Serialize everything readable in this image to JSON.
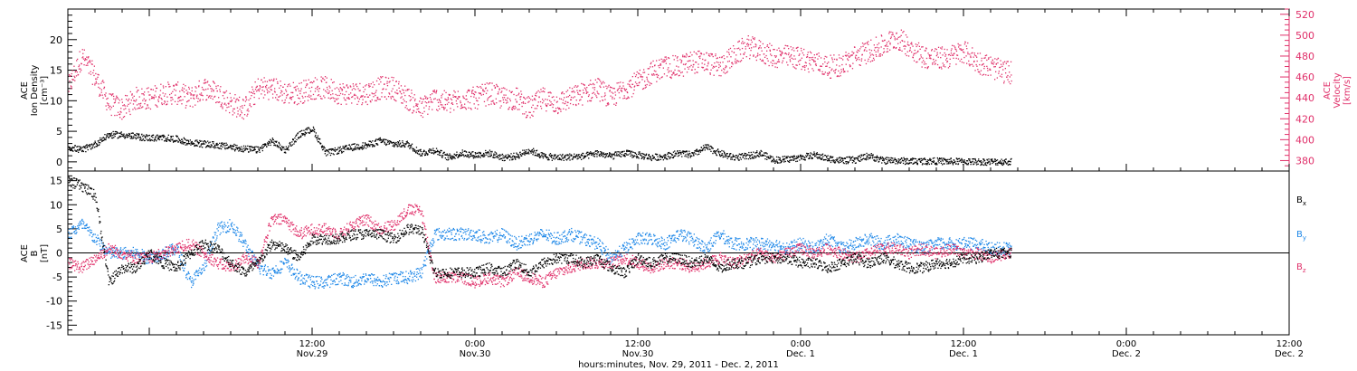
{
  "colors": {
    "black": "#000000",
    "pink": "#e0306a",
    "blue": "#1f88e8"
  },
  "chart_data": [
    {
      "type": "scatter",
      "panel": "top",
      "xlabel": "hours:minutes, Nov. 29, 2011 - Dec. 2, 2011",
      "x_ticks": [
        {
          "time": "12:00",
          "date": "Nov.29"
        },
        {
          "time": "0:00",
          "date": "Nov.30"
        },
        {
          "time": "12:00",
          "date": "Nov.30"
        },
        {
          "time": "0:00",
          "date": "Dec. 1"
        },
        {
          "time": "12:00",
          "date": "Dec. 1"
        },
        {
          "time": "0:00",
          "date": "Dec. 2"
        },
        {
          "time": "12:00",
          "date": "Dec. 2"
        }
      ],
      "xlim_hours": [
        -6.0,
        84.0
      ],
      "data_end_hours": 63.5,
      "left_axis": {
        "label": [
          "ACE",
          "Ion Density",
          "[cm⁻³]"
        ],
        "ylim": [
          -1.5,
          25
        ],
        "ticks": [
          0,
          5,
          10,
          15,
          20
        ]
      },
      "right_axis": {
        "label": [
          "ACE",
          "Velocity",
          "[km/s]"
        ],
        "ylim": [
          370,
          525
        ],
        "ticks": [
          380,
          400,
          420,
          440,
          460,
          480,
          500,
          520
        ]
      },
      "series": [
        {
          "axis": "left",
          "color": "black",
          "x_hours": [
            -6,
            -5,
            -4,
            -3,
            -2,
            -1,
            0,
            1,
            2,
            3,
            4,
            5,
            6,
            7,
            8,
            9,
            10,
            11,
            12,
            13,
            14,
            15,
            16,
            17,
            18,
            19,
            20,
            21,
            22,
            23,
            24,
            25,
            26,
            27,
            28,
            29,
            30,
            31,
            32,
            33,
            34,
            35,
            36,
            37,
            38,
            39,
            40,
            41,
            42,
            43,
            44,
            45,
            46,
            47,
            48,
            49,
            50,
            51,
            52,
            53,
            54,
            55,
            56,
            57,
            58,
            59,
            60,
            61,
            62,
            63
          ],
          "values": [
            2.5,
            2.0,
            3.0,
            4.5,
            4.5,
            4.2,
            4.0,
            4.0,
            3.8,
            3.2,
            3.0,
            2.8,
            2.5,
            2.2,
            2.0,
            3.5,
            2.0,
            4.5,
            5.5,
            1.5,
            2.0,
            2.5,
            2.8,
            3.5,
            3.0,
            3.0,
            1.5,
            2.0,
            0.8,
            1.5,
            1.2,
            1.5,
            0.8,
            1.0,
            2.0,
            1.0,
            0.8,
            0.9,
            1.0,
            1.5,
            1.0,
            1.5,
            1.2,
            0.8,
            1.0,
            1.5,
            1.2,
            2.5,
            1.5,
            0.8,
            1.0,
            1.5,
            0.4,
            0.5,
            0.8,
            1.2,
            0.6,
            0.3,
            0.4,
            1.1,
            0.3,
            0.3,
            0.2,
            0.2,
            0.2,
            0.15,
            0.15,
            0.1,
            0.1,
            0.1
          ]
        },
        {
          "axis": "right",
          "color": "pink",
          "x_hours": [
            -6,
            -5,
            -4,
            -3,
            -2,
            -1,
            0,
            1,
            2,
            3,
            4,
            5,
            6,
            7,
            8,
            9,
            10,
            11,
            12,
            13,
            14,
            15,
            16,
            17,
            18,
            19,
            20,
            21,
            22,
            23,
            24,
            25,
            26,
            27,
            28,
            29,
            30,
            31,
            32,
            33,
            34,
            35,
            36,
            37,
            38,
            39,
            40,
            41,
            42,
            43,
            44,
            45,
            46,
            47,
            48,
            49,
            50,
            51,
            52,
            53,
            54,
            55,
            56,
            57,
            58,
            59,
            60,
            61,
            62,
            63
          ],
          "values": [
            450,
            480,
            460,
            435,
            430,
            440,
            440,
            445,
            445,
            440,
            450,
            445,
            435,
            430,
            450,
            450,
            445,
            445,
            450,
            450,
            445,
            445,
            445,
            450,
            450,
            440,
            430,
            440,
            435,
            440,
            440,
            445,
            440,
            440,
            430,
            440,
            435,
            440,
            445,
            450,
            440,
            450,
            455,
            465,
            470,
            470,
            475,
            475,
            470,
            480,
            490,
            485,
            480,
            480,
            478,
            475,
            470,
            472,
            480,
            485,
            490,
            498,
            490,
            480,
            478,
            480,
            485,
            475,
            470,
            465
          ]
        }
      ]
    },
    {
      "type": "scatter",
      "panel": "bottom",
      "xlim_hours": [
        -6.0,
        84.0
      ],
      "data_end_hours": 63.5,
      "left_axis": {
        "label": [
          "ACE",
          "B",
          "[nT]"
        ],
        "ylim": [
          -17,
          17
        ],
        "ticks": [
          -15,
          -10,
          -5,
          0,
          5,
          10,
          15
        ]
      },
      "series": [
        {
          "name": "Bx",
          "label_main": "B",
          "label_sub": "x",
          "color": "black",
          "x_hours": [
            -6,
            -5,
            -4,
            -3,
            -2,
            -1,
            0,
            1,
            2,
            3,
            4,
            5,
            6,
            7,
            8,
            9,
            10,
            11,
            12,
            13,
            14,
            15,
            16,
            17,
            18,
            19,
            20,
            21,
            22,
            23,
            24,
            25,
            26,
            27,
            28,
            29,
            30,
            31,
            32,
            33,
            34,
            35,
            36,
            37,
            38,
            39,
            40,
            41,
            42,
            43,
            44,
            45,
            46,
            47,
            48,
            49,
            50,
            51,
            52,
            53,
            54,
            55,
            56,
            57,
            58,
            59,
            60,
            61,
            62,
            63
          ],
          "values": [
            15,
            14,
            12,
            -6,
            -3,
            -3,
            0,
            -2,
            -3,
            0,
            2,
            1,
            -2,
            -4,
            -2,
            2,
            1,
            -1,
            3,
            3,
            3,
            4,
            4,
            4,
            3,
            5,
            5,
            -4,
            -4,
            -4,
            -4,
            -3,
            -4,
            -2,
            -4,
            -2,
            -1,
            -1,
            -2,
            -1,
            -3,
            -4,
            -1,
            -2,
            -1,
            -1,
            -2,
            -1,
            -3,
            -2,
            -2,
            -1,
            -1,
            -1,
            -2,
            -2,
            -3,
            -2,
            -1,
            -2,
            -1,
            -2,
            -3,
            -3,
            -2,
            -2,
            -1,
            -1,
            0,
            0
          ]
        },
        {
          "name": "By",
          "label_main": "B",
          "label_sub": "y",
          "color": "blue",
          "x_hours": [
            -6,
            -5,
            -4,
            -3,
            -2,
            -1,
            0,
            1,
            2,
            3,
            4,
            5,
            6,
            7,
            8,
            9,
            10,
            11,
            12,
            13,
            14,
            15,
            16,
            17,
            18,
            19,
            20,
            21,
            22,
            23,
            24,
            25,
            26,
            27,
            28,
            29,
            30,
            31,
            32,
            33,
            34,
            35,
            36,
            37,
            38,
            39,
            40,
            41,
            42,
            43,
            44,
            45,
            46,
            47,
            48,
            49,
            50,
            51,
            52,
            53,
            54,
            55,
            56,
            57,
            58,
            59,
            60,
            61,
            62,
            63
          ],
          "values": [
            4,
            6,
            3,
            0,
            0,
            0,
            -1,
            0,
            1,
            -6,
            -3,
            5,
            6,
            2,
            -3,
            -4,
            -2,
            -5,
            -6,
            -6,
            -5,
            -6,
            -5,
            -6,
            -5,
            -5,
            -4,
            4,
            4,
            4,
            4,
            3,
            4,
            2,
            3,
            4,
            3,
            4,
            3,
            2,
            -1,
            1,
            3,
            3,
            2,
            4,
            3,
            1,
            4,
            2,
            2,
            2,
            2,
            1,
            2,
            1,
            3,
            1,
            2,
            3,
            2,
            3,
            2,
            1,
            2,
            2,
            2,
            2,
            1,
            1
          ]
        },
        {
          "name": "Bz",
          "label_main": "B",
          "label_sub": "z",
          "color": "pink",
          "x_hours": [
            -6,
            -5,
            -4,
            -3,
            -2,
            -1,
            0,
            1,
            2,
            3,
            4,
            5,
            6,
            7,
            8,
            9,
            10,
            11,
            12,
            13,
            14,
            15,
            16,
            17,
            18,
            19,
            20,
            21,
            22,
            23,
            24,
            25,
            26,
            27,
            28,
            29,
            30,
            31,
            32,
            33,
            34,
            35,
            36,
            37,
            38,
            39,
            40,
            41,
            42,
            43,
            44,
            45,
            46,
            47,
            48,
            49,
            50,
            51,
            52,
            53,
            54,
            55,
            56,
            57,
            58,
            59,
            60,
            61,
            62,
            63
          ],
          "values": [
            -2,
            -3,
            -1,
            1,
            0,
            -1,
            -1,
            0,
            1,
            2,
            0,
            -2,
            -3,
            -1,
            -2,
            7,
            7,
            4,
            5,
            5,
            4,
            6,
            7,
            5,
            6,
            9,
            9,
            -5,
            -5,
            -5,
            -6,
            -5,
            -6,
            -4,
            -5,
            -6,
            -4,
            -3,
            -2,
            -2,
            -2,
            -1,
            -2,
            -3,
            -2,
            -2,
            -3,
            -2,
            -1,
            -2,
            -1,
            0,
            -1,
            0,
            1,
            0,
            1,
            0,
            -1,
            0,
            1,
            1,
            0,
            1,
            0,
            1,
            0,
            0,
            -1,
            0
          ]
        }
      ]
    }
  ]
}
